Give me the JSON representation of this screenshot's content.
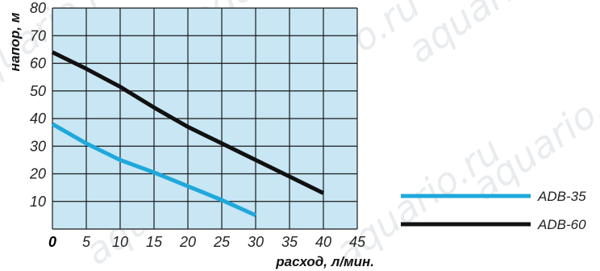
{
  "chart_data": {
    "type": "line",
    "xlabel": "расход, л/мин.",
    "ylabel": "напор, м",
    "xlim": [
      0,
      45
    ],
    "ylim": [
      0,
      80
    ],
    "x_ticks": [
      0,
      5,
      10,
      15,
      20,
      25,
      30,
      35,
      40,
      45
    ],
    "y_ticks": [
      10,
      20,
      30,
      40,
      50,
      60,
      70,
      80
    ],
    "grid": true,
    "plot_background": "#c8e6f4",
    "legend_position": "right",
    "series": [
      {
        "name": "ADB-35",
        "color": "#1fa8dc",
        "x": [
          0,
          5,
          10,
          15,
          20,
          25,
          30
        ],
        "y": [
          38,
          31,
          25,
          20.5,
          15.5,
          10.5,
          5
        ]
      },
      {
        "name": "ADB-60",
        "color": "#111111",
        "x": [
          0,
          5,
          10,
          15,
          20,
          25,
          30,
          35,
          40
        ],
        "y": [
          64,
          58,
          51.5,
          44,
          37,
          31,
          25,
          19,
          13
        ]
      }
    ]
  },
  "watermark": "aquario.ru"
}
